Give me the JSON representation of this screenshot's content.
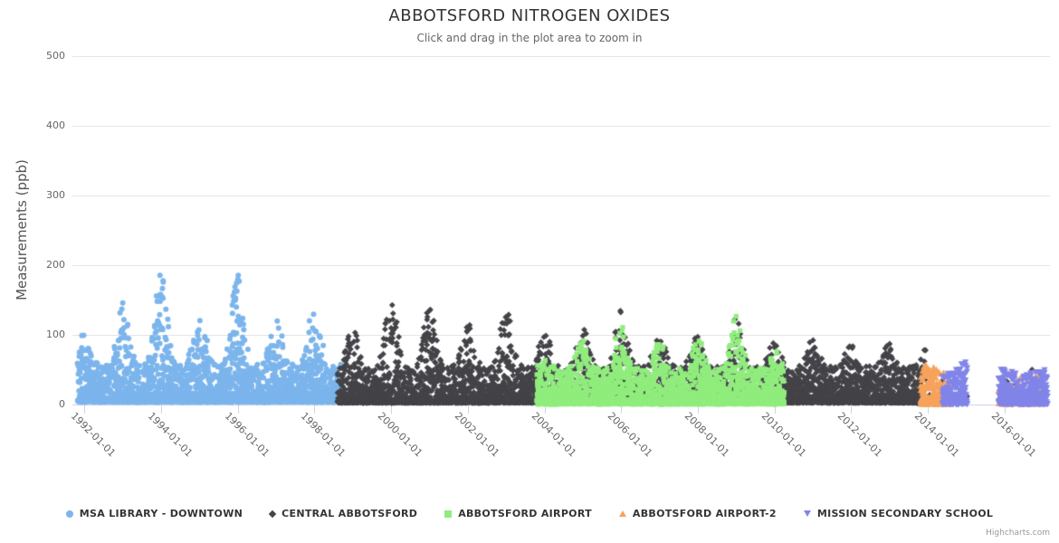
{
  "chart": {
    "title": "ABBOTSFORD NITROGEN OXIDES",
    "subtitle": "Click and drag in the plot area to zoom in",
    "credit": "Highcharts.com"
  },
  "chart_data": {
    "type": "scatter",
    "title": "ABBOTSFORD NITROGEN OXIDES",
    "subtitle": "Click and drag in the plot area to zoom in",
    "ylabel": "Measurements (ppb)",
    "xlabel": "",
    "ylim": [
      0,
      500
    ],
    "yticks": [
      0,
      100,
      200,
      300,
      400,
      500
    ],
    "xtick_labels": [
      "1992-01-01",
      "1994-01-01",
      "1996-01-01",
      "1998-01-01",
      "2000-01-01",
      "2002-01-01",
      "2004-01-01",
      "2006-01-01",
      "2008-01-01",
      "2010-01-01",
      "2012-01-01",
      "2014-01-01",
      "2016-01-01"
    ],
    "xtick_years": [
      1992,
      1994,
      1996,
      1998,
      2000,
      2002,
      2004,
      2006,
      2008,
      2010,
      2012,
      2014,
      2016
    ],
    "grid": "horizontal-only",
    "legend_position": "bottom-center",
    "sampling": "daily measurements",
    "series": [
      {
        "name": "MSA LIBRARY - DOWNTOWN",
        "color": "#7cb5ec",
        "marker": "circle",
        "segments_years_step_days": [
          [
            1991.83,
            1998.7,
            1
          ]
        ],
        "typical_range_ppb": [
          4,
          58
        ],
        "season_sharpness": 2.0,
        "annual_winter_peaks_ppb": {
          "1992": 105,
          "1993": 150,
          "1994": 190,
          "1995": 135,
          "1996": 188,
          "1997": 125,
          "1998": 145
        }
      },
      {
        "name": "CENTRAL ABBOTSFORD",
        "color": "#434348",
        "marker": "diamond",
        "segments_years_step_days": [
          [
            1998.6,
            2013.93,
            1
          ],
          [
            2014.05,
            2015.05,
            40
          ],
          [
            2015.85,
            2017.05,
            40
          ]
        ],
        "typical_range_ppb": [
          3,
          55
        ],
        "season_sharpness": 2.0,
        "annual_winter_peaks_ppb": {
          "1999": 110,
          "2000": 150,
          "2001": 142,
          "2002": 118,
          "2003": 140,
          "2004": 105,
          "2005": 112,
          "2006": 140,
          "2007": 95,
          "2008": 100,
          "2009": 125,
          "2010": 90,
          "2011": 95,
          "2012": 88,
          "2013": 95,
          "2014": 85,
          "2015": 85,
          "2016": 60,
          "2017": 55
        }
      },
      {
        "name": "ABBOTSFORD AIRPORT",
        "color": "#90ed7d",
        "marker": "square",
        "segments_years_step_days": [
          [
            2003.8,
            2010.25,
            1
          ]
        ],
        "typical_range_ppb": [
          1,
          52
        ],
        "season_sharpness": 2.2,
        "annual_winter_peaks_ppb": {
          "2004": 65,
          "2005": 95,
          "2006": 115,
          "2007": 95,
          "2008": 100,
          "2009": 130,
          "2010": 80
        }
      },
      {
        "name": "ABBOTSFORD AIRPORT-2",
        "color": "#f7a35c",
        "marker": "triangle-up",
        "segments_years_step_days": [
          [
            2013.81,
            2014.55,
            1
          ],
          [
            2015.85,
            2017.08,
            3
          ]
        ],
        "typical_range_ppb": [
          1,
          45
        ],
        "season_sharpness": 1.5,
        "annual_winter_peaks_ppb": {
          "2014": 58,
          "2016": 48,
          "2017": 42
        }
      },
      {
        "name": "MISSION SECONDARY SCHOOL",
        "color": "#8085e9",
        "marker": "triangle-down",
        "segments_years_step_days": [
          [
            2014.38,
            2015.02,
            1
          ],
          [
            2015.85,
            2017.12,
            1
          ]
        ],
        "typical_range_ppb": [
          1,
          45
        ],
        "season_sharpness": 1.5,
        "annual_winter_peaks_ppb": {
          "2014": 55,
          "2015": 62,
          "2016": 52,
          "2017": 50
        }
      }
    ]
  }
}
